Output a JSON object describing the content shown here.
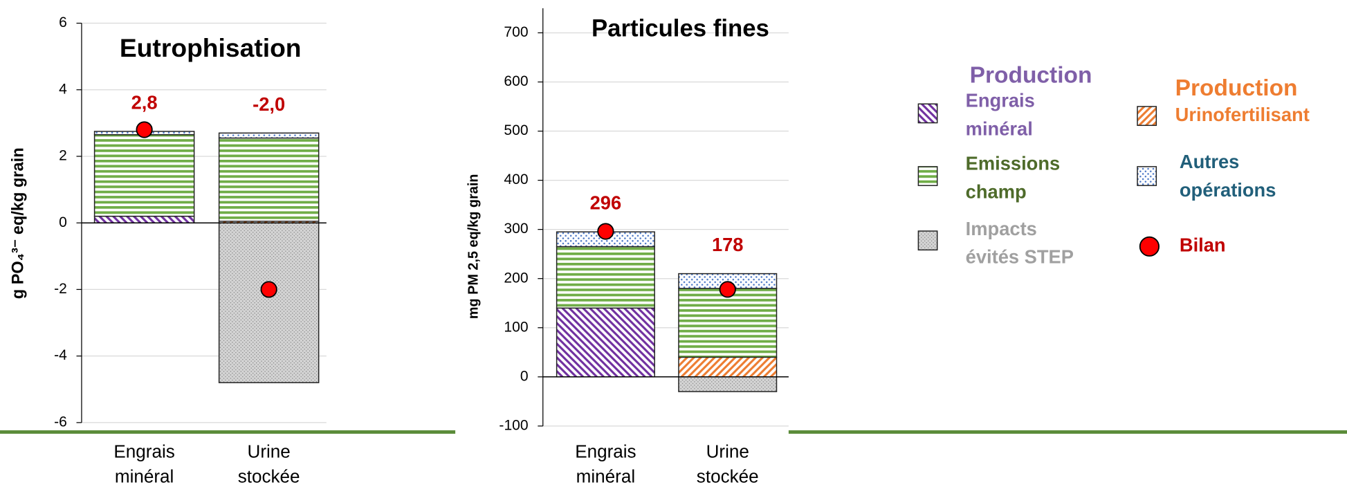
{
  "legend": [
    {
      "group": "Production",
      "name": "Engrais minéral",
      "color": "#7030a0",
      "label_color": "#7f5fa8",
      "pattern": "diagonal-down"
    },
    {
      "group": "Production",
      "name": "Urinofertilisant",
      "color": "#ed7d31",
      "label_color": "#ee7d31",
      "pattern": "diagonal-up"
    },
    {
      "name": "Emissions champ",
      "color": "#70ad47",
      "label_color": "#4e6b2a",
      "pattern": "horizontal"
    },
    {
      "name": "Autres opérations",
      "color": "#4472c4",
      "label_color": "#215f7a",
      "pattern": "dots"
    },
    {
      "name": "Impacts évités STEP",
      "color": "#7f7f7f",
      "label_color": "#a0a0a0",
      "pattern": "stipple"
    },
    {
      "name": "Bilan",
      "color": "#ff0000",
      "label_color": "#c00000",
      "marker": "circle"
    }
  ],
  "chart_data": [
    {
      "type": "bar",
      "stacked": true,
      "title": "Eutrophisation",
      "y_label": "g  PO₄³⁻ eq/kg grain",
      "categories": [
        "Engrais minéral",
        "Urine stockée"
      ],
      "series": [
        {
          "values": [
            0.2,
            0
          ]
        },
        {
          "values": [
            0,
            0.05
          ]
        },
        {
          "values": [
            2.45,
            2.5
          ]
        },
        {
          "values": [
            0.1,
            0.15
          ]
        },
        {
          "values": [
            0,
            -4.8
          ]
        }
      ],
      "balance": {
        "values": [
          2.8,
          -2.0
        ],
        "value_labels": [
          "2,8",
          "-2,0"
        ]
      },
      "ylim": [
        -6,
        6
      ],
      "yticks": [
        -6,
        -4,
        -2,
        0,
        2,
        4,
        6
      ],
      "grid": true
    },
    {
      "type": "bar",
      "stacked": true,
      "title": "Particules fines",
      "y_label": "mg PM 2,5 eq/kg grain",
      "categories": [
        "Engrais minéral",
        "Urine stockée"
      ],
      "series": [
        {
          "values": [
            140,
            0
          ]
        },
        {
          "values": [
            0,
            40
          ]
        },
        {
          "values": [
            125,
            140
          ]
        },
        {
          "values": [
            30,
            30
          ]
        },
        {
          "values": [
            0,
            -30
          ]
        }
      ],
      "balance": {
        "values": [
          296,
          178
        ]
      },
      "ylim": [
        -100,
        750
      ],
      "yticks": [
        -100,
        0,
        100,
        200,
        300,
        400,
        500,
        600,
        700
      ],
      "grid": true
    }
  ]
}
